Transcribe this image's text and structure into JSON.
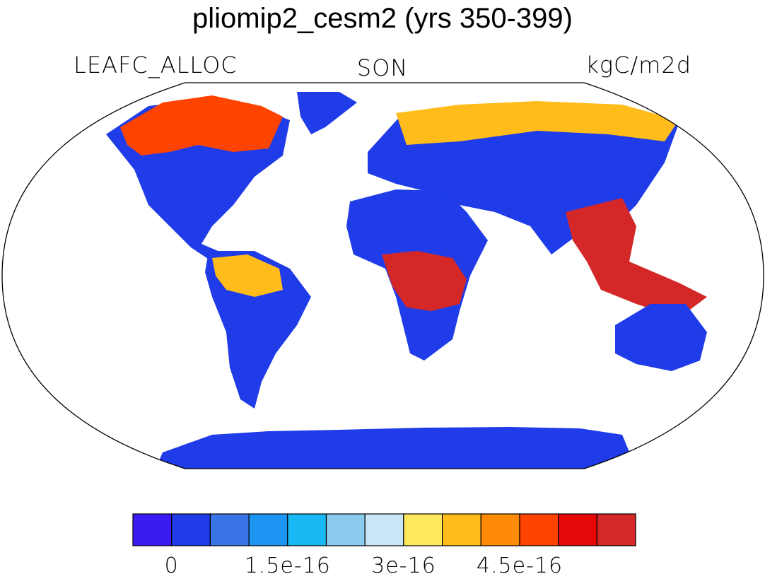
{
  "title": "pliomip2_cesm2 (yrs 350-399)",
  "variable": "LEAFC_ALLOC",
  "season": "SON",
  "units": "kgC/m2d",
  "projection": "robinson",
  "colorbar": {
    "colors": [
      "#3a1cf2",
      "#1f3ce8",
      "#3a74e6",
      "#1c94f2",
      "#18b8f5",
      "#8ccaef",
      "#c8e6f6",
      "#ffe85c",
      "#ffbc1a",
      "#ff8a05",
      "#ff4300",
      "#e60808",
      "#d42828"
    ],
    "tick_labels": [
      "0",
      "1.5e-16",
      "3e-16",
      "4.5e-16"
    ]
  },
  "regions": [
    {
      "name": "north-america",
      "color": "#1f3ce8"
    },
    {
      "name": "canada-arctic",
      "color": "#ff4300"
    },
    {
      "name": "greenland",
      "color": "#1f3ce8"
    },
    {
      "name": "south-america",
      "color": "#1f3ce8"
    },
    {
      "name": "amazon",
      "color": "#ffbc1a"
    },
    {
      "name": "africa",
      "color": "#1f3ce8"
    },
    {
      "name": "central-africa",
      "color": "#d42828"
    },
    {
      "name": "eurasia",
      "color": "#1f3ce8"
    },
    {
      "name": "siberia",
      "color": "#ffbc1a"
    },
    {
      "name": "southeast-asia",
      "color": "#d42828"
    },
    {
      "name": "australia",
      "color": "#1f3ce8"
    },
    {
      "name": "antarctica",
      "color": "#1f3ce8"
    }
  ]
}
